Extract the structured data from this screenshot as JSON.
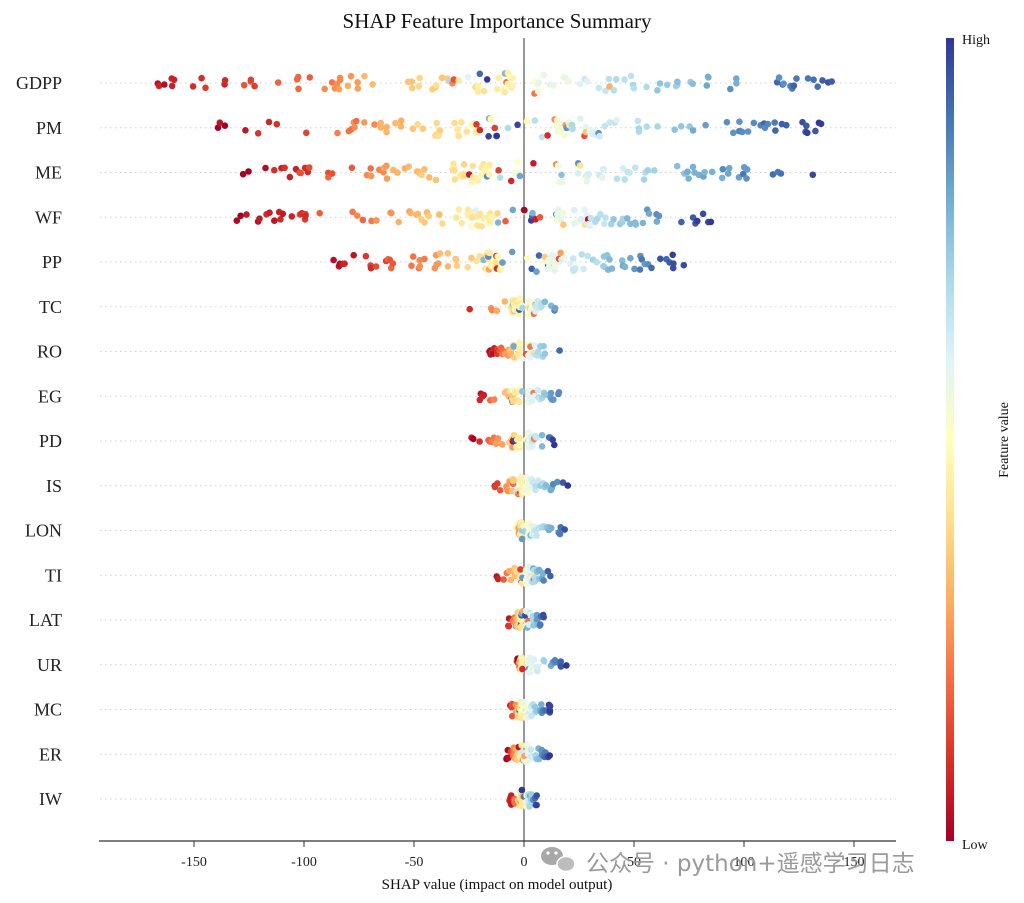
{
  "chart_data": {
    "type": "scatter",
    "title": "SHAP Feature Importance Summary",
    "xlabel": "SHAP value (impact on model output)",
    "xlim": [
      -195,
      170
    ],
    "x_ticks": [
      -150,
      -100,
      -50,
      0,
      50,
      100,
      150
    ],
    "x_tick_labels": [
      "-150",
      "-100",
      "-50",
      "0",
      "50",
      "100",
      "150"
    ],
    "grid": "dotted horizontal row lines",
    "features": [
      {
        "name": "GDPP",
        "low_range": [
          -178,
          -5
        ],
        "high_range": [
          5,
          153
        ],
        "mixed_range": [
          -40,
          40
        ]
      },
      {
        "name": "PM",
        "low_range": [
          -140,
          -20
        ],
        "high_range": [
          15,
          137
        ],
        "mixed_range": [
          -35,
          35
        ]
      },
      {
        "name": "ME",
        "low_range": [
          -130,
          -15
        ],
        "high_range": [
          15,
          135
        ],
        "mixed_range": [
          -30,
          30
        ]
      },
      {
        "name": "WF",
        "low_range": [
          -131,
          -15
        ],
        "high_range": [
          15,
          85
        ],
        "mixed_range": [
          -30,
          30
        ]
      },
      {
        "name": "PP",
        "low_range": [
          -91,
          -10
        ],
        "high_range": [
          10,
          73
        ],
        "mixed_range": [
          -20,
          20
        ]
      },
      {
        "name": "TC",
        "low_range": [
          -28,
          -2
        ],
        "high_range": [
          2,
          20
        ],
        "mixed_range": [
          -6,
          6
        ]
      },
      {
        "name": "RO",
        "low_range": [
          -16,
          -2
        ],
        "high_range": [
          2,
          18
        ],
        "mixed_range": [
          -6,
          6
        ]
      },
      {
        "name": "EG",
        "low_range": [
          -23,
          -2
        ],
        "high_range": [
          2,
          20
        ],
        "mixed_range": [
          -6,
          6
        ]
      },
      {
        "name": "PD",
        "low_range": [
          -25,
          -2
        ],
        "high_range": [
          2,
          14
        ],
        "mixed_range": [
          -6,
          6
        ]
      },
      {
        "name": "IS",
        "low_range": [
          -16,
          -1
        ],
        "high_range": [
          1,
          20
        ],
        "mixed_range": [
          -5,
          5
        ]
      },
      {
        "name": "LON",
        "low_range": [
          -4,
          -1
        ],
        "high_range": [
          2,
          20
        ],
        "mixed_range": [
          -4,
          4
        ]
      },
      {
        "name": "TI",
        "low_range": [
          -14,
          -1
        ],
        "high_range": [
          1,
          13
        ],
        "mixed_range": [
          -5,
          5
        ]
      },
      {
        "name": "LAT",
        "low_range": [
          -8,
          -1
        ],
        "high_range": [
          1,
          10
        ],
        "mixed_range": [
          -4,
          4
        ]
      },
      {
        "name": "UR",
        "low_range": [
          -3,
          -1
        ],
        "high_range": [
          2,
          20
        ],
        "mixed_range": [
          -4,
          4
        ]
      },
      {
        "name": "MC",
        "low_range": [
          -7,
          -1
        ],
        "high_range": [
          1,
          12
        ],
        "mixed_range": [
          -4,
          4
        ]
      },
      {
        "name": "ER",
        "low_range": [
          -8,
          -1
        ],
        "high_range": [
          1,
          12
        ],
        "mixed_range": [
          -4,
          4
        ]
      },
      {
        "name": "IW",
        "low_range": [
          -7,
          -1
        ],
        "high_range": [
          1,
          6
        ],
        "mixed_range": [
          -3,
          3
        ]
      }
    ],
    "colorbar": {
      "label": "Feature value",
      "high_label": "High",
      "low_label": "Low",
      "colors_high_to_low": [
        "#313695",
        "#4575b4",
        "#74add1",
        "#abd9e9",
        "#e0f3f8",
        "#ffffbf",
        "#fee090",
        "#fdae61",
        "#f46d43",
        "#d73027",
        "#a50026"
      ]
    },
    "legend": "colorbar at right"
  },
  "watermark": "公众号 · python+遥感学习日志"
}
